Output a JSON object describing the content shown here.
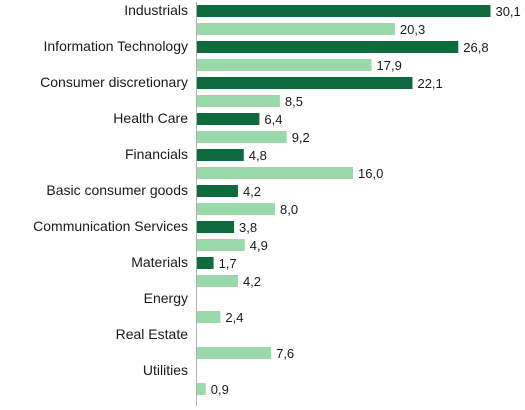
{
  "chart_data": {
    "type": "bar",
    "orientation": "horizontal",
    "categories": [
      "Industrials",
      "Information Technology",
      "Consumer discretionary",
      "Health Care",
      "Financials",
      "Basic consumer goods",
      "Communication Services",
      "Materials",
      "Energy",
      "Real Estate",
      "Utilities"
    ],
    "series": [
      {
        "color": "#0f6b3e",
        "values": [
          30.1,
          26.8,
          22.1,
          6.4,
          4.8,
          4.2,
          3.8,
          1.7,
          null,
          null,
          null
        ],
        "labels": [
          "30,1",
          "26,8",
          "22,1",
          "6,4",
          "4,8",
          "4,2",
          "3,8",
          "1,7",
          null,
          null,
          null
        ]
      },
      {
        "color": "#9ad9a9",
        "values": [
          20.3,
          17.9,
          8.5,
          9.2,
          16.0,
          8.0,
          4.9,
          4.2,
          2.4,
          7.6,
          0.9
        ],
        "labels": [
          "20,3",
          "17,9",
          "8,5",
          "9,2",
          "16,0",
          "8,0",
          "4,9",
          "4,2",
          "2,4",
          "7,6",
          "0,9"
        ]
      }
    ],
    "xlim": [
      0,
      32
    ],
    "grid": false,
    "legend": "none"
  }
}
